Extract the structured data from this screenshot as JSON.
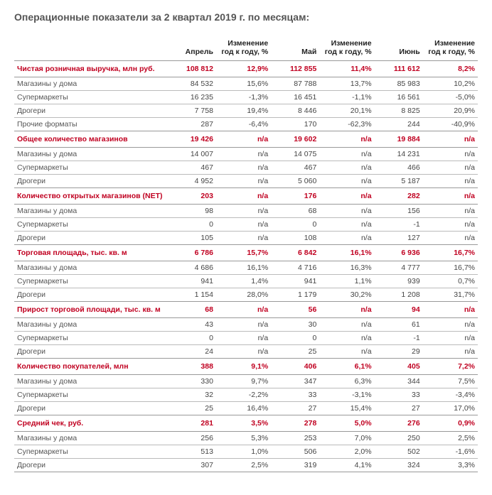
{
  "title": "Операционные показатели за 2 квартал 2019 г. по месяцам:",
  "columns": {
    "label": "",
    "m1": "Апрель",
    "c1": "Изменение год к году, %",
    "m2": "Май",
    "c2": "Изменение год к году, %",
    "m3": "Июнь",
    "c3": "Изменение год к году, %"
  },
  "sections": [
    {
      "header": {
        "label": "Чистая розничная выручка, млн руб.",
        "m1": "108 812",
        "c1": "12,9%",
        "m2": "112 855",
        "c2": "11,4%",
        "m3": "111 612",
        "c3": "8,2%"
      },
      "rows": [
        {
          "label": "Магазины у дома",
          "m1": "84 532",
          "c1": "15,6%",
          "m2": "87 788",
          "c2": "13,7%",
          "m3": "85 983",
          "c3": "10,2%"
        },
        {
          "label": "Супермаркеты",
          "m1": "16 235",
          "c1": "-1,3%",
          "m2": "16 451",
          "c2": "-1,1%",
          "m3": "16 561",
          "c3": "-5,0%"
        },
        {
          "label": "Дрогери",
          "m1": "7 758",
          "c1": "19,4%",
          "m2": "8 446",
          "c2": "20,1%",
          "m3": "8 825",
          "c3": "20,9%"
        },
        {
          "label": "Прочие форматы",
          "m1": "287",
          "c1": "-6,4%",
          "m2": "170",
          "c2": "-62,3%",
          "m3": "244",
          "c3": "-40,9%"
        }
      ]
    },
    {
      "header": {
        "label": "Общее количество магазинов",
        "m1": "19 426",
        "c1": "n/a",
        "m2": "19 602",
        "c2": "n/a",
        "m3": "19 884",
        "c3": "n/a"
      },
      "rows": [
        {
          "label": "Магазины у дома",
          "m1": "14 007",
          "c1": "n/a",
          "m2": "14 075",
          "c2": "n/a",
          "m3": "14 231",
          "c3": "n/a"
        },
        {
          "label": "Супермаркеты",
          "m1": "467",
          "c1": "n/a",
          "m2": "467",
          "c2": "n/a",
          "m3": "466",
          "c3": "n/a"
        },
        {
          "label": "Дрогери",
          "m1": "4 952",
          "c1": "n/a",
          "m2": "5 060",
          "c2": "n/a",
          "m3": "5 187",
          "c3": "n/a"
        }
      ]
    },
    {
      "header": {
        "label": "Количество открытых магазинов (NET)",
        "m1": "203",
        "c1": "n/a",
        "m2": "176",
        "c2": "n/a",
        "m3": "282",
        "c3": "n/a"
      },
      "rows": [
        {
          "label": "Магазины у дома",
          "m1": "98",
          "c1": "n/a",
          "m2": "68",
          "c2": "n/a",
          "m3": "156",
          "c3": "n/a"
        },
        {
          "label": "Супермаркеты",
          "m1": "0",
          "c1": "n/a",
          "m2": "0",
          "c2": "n/a",
          "m3": "-1",
          "c3": "n/a"
        },
        {
          "label": "Дрогери",
          "m1": "105",
          "c1": "n/a",
          "m2": "108",
          "c2": "n/a",
          "m3": "127",
          "c3": "n/a"
        }
      ]
    },
    {
      "header": {
        "label": "Торговая площадь, тыс. кв. м",
        "m1": "6 786",
        "c1": "15,7%",
        "m2": "6 842",
        "c2": "16,1%",
        "m3": "6 936",
        "c3": "16,7%"
      },
      "rows": [
        {
          "label": "Магазины у дома",
          "m1": "4 686",
          "c1": "16,1%",
          "m2": "4 716",
          "c2": "16,3%",
          "m3": "4 777",
          "c3": "16,7%"
        },
        {
          "label": "Супермаркеты",
          "m1": "941",
          "c1": "1,4%",
          "m2": "941",
          "c2": "1,1%",
          "m3": "939",
          "c3": "0,7%"
        },
        {
          "label": "Дрогери",
          "m1": "1 154",
          "c1": "28,0%",
          "m2": "1 179",
          "c2": "30,2%",
          "m3": "1 208",
          "c3": "31,7%"
        }
      ]
    },
    {
      "header": {
        "label": "Прирост торговой площади, тыс. кв. м",
        "m1": "68",
        "c1": "n/a",
        "m2": "56",
        "c2": "n/a",
        "m3": "94",
        "c3": "n/a"
      },
      "rows": [
        {
          "label": "Магазины у дома",
          "m1": "43",
          "c1": "n/a",
          "m2": "30",
          "c2": "n/a",
          "m3": "61",
          "c3": "n/a"
        },
        {
          "label": "Супермаркеты",
          "m1": "0",
          "c1": "n/a",
          "m2": "0",
          "c2": "n/a",
          "m3": "-1",
          "c3": "n/a"
        },
        {
          "label": "Дрогери",
          "m1": "24",
          "c1": "n/a",
          "m2": "25",
          "c2": "n/a",
          "m3": "29",
          "c3": "n/a"
        }
      ]
    },
    {
      "header": {
        "label": "Количество покупателей, млн",
        "m1": "388",
        "c1": "9,1%",
        "m2": "406",
        "c2": "6,1%",
        "m3": "405",
        "c3": "7,2%"
      },
      "rows": [
        {
          "label": "Магазины у дома",
          "m1": "330",
          "c1": "9,7%",
          "m2": "347",
          "c2": "6,3%",
          "m3": "344",
          "c3": "7,5%"
        },
        {
          "label": "Супермаркеты",
          "m1": "32",
          "c1": "-2,2%",
          "m2": "33",
          "c2": "-3,1%",
          "m3": "33",
          "c3": "-3,4%"
        },
        {
          "label": "Дрогери",
          "m1": "25",
          "c1": "16,4%",
          "m2": "27",
          "c2": "15,4%",
          "m3": "27",
          "c3": "17,0%"
        }
      ]
    },
    {
      "header": {
        "label": "Средний чек, руб.",
        "m1": "281",
        "c1": "3,5%",
        "m2": "278",
        "c2": "5,0%",
        "m3": "276",
        "c3": "0,9%"
      },
      "rows": [
        {
          "label": "Магазины у дома",
          "m1": "256",
          "c1": "5,3%",
          "m2": "253",
          "c2": "7,0%",
          "m3": "250",
          "c3": "2,5%"
        },
        {
          "label": "Супермаркеты",
          "m1": "513",
          "c1": "1,0%",
          "m2": "506",
          "c2": "2,0%",
          "m3": "502",
          "c3": "-1,6%"
        },
        {
          "label": "Дрогери",
          "m1": "307",
          "c1": "2,5%",
          "m2": "319",
          "c2": "4,1%",
          "m3": "324",
          "c3": "3,3%"
        }
      ]
    }
  ]
}
